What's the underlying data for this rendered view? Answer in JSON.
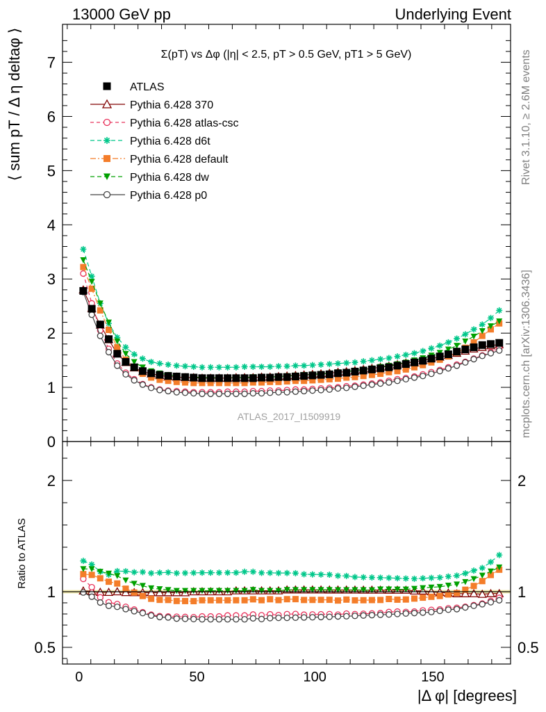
{
  "header": {
    "left": "13000 GeV pp",
    "right": "Underlying Event"
  },
  "side_text": {
    "rivet": "Rivet 3.1.10, ≥ 2.6M events",
    "mcplots": "mcplots.cern.ch [arXiv:1306.3436]"
  },
  "watermark": "ATLAS_2017_I1509919",
  "chart_data": {
    "type": "line",
    "title": "Σ(pT) vs Δφ (|η| < 2.5, pT > 0.5 GeV, pT1 > 5 GeV)",
    "xlabel": "|Δ φ| [degrees]",
    "ylabel": "⟨ sum pT / Δ η deltaφ ⟩",
    "ratio_ylabel": "Ratio to ATLAS",
    "xlim": [
      -7,
      183
    ],
    "ylim": [
      0,
      7.7
    ],
    "ratio_ylim": [
      0.35,
      2.35
    ],
    "xticks": [
      0,
      50,
      100,
      150
    ],
    "yticks": [
      0,
      1,
      2,
      3,
      4,
      5,
      6,
      7
    ],
    "ratio_yticks": [
      0.5,
      1,
      2
    ],
    "ratio_ytick_labels": [
      "0.5",
      "1",
      "2"
    ],
    "grid": false,
    "legend_position": "top-left",
    "x": [
      1.8,
      5.4,
      9,
      12.6,
      16.2,
      19.8,
      23.4,
      27,
      30.6,
      34.2,
      37.8,
      41.4,
      45,
      48.6,
      52.2,
      55.8,
      59.4,
      63,
      66.6,
      70.2,
      73.8,
      77.4,
      81,
      84.6,
      88.2,
      91.8,
      95.4,
      99,
      102.6,
      106.2,
      109.8,
      113.4,
      117,
      120.6,
      124.2,
      127.8,
      131.4,
      135,
      138.6,
      142.2,
      145.8,
      149.4,
      153,
      156.6,
      160.2,
      163.8,
      167.4,
      171,
      174.6,
      178.2
    ],
    "series": [
      {
        "name": "ATLAS",
        "color": "#000000",
        "marker": "filled-square",
        "values": [
          2.78,
          2.45,
          2.16,
          1.89,
          1.62,
          1.47,
          1.37,
          1.3,
          1.26,
          1.23,
          1.21,
          1.2,
          1.19,
          1.18,
          1.17,
          1.17,
          1.17,
          1.17,
          1.17,
          1.17,
          1.17,
          1.18,
          1.18,
          1.19,
          1.19,
          1.2,
          1.21,
          1.22,
          1.23,
          1.24,
          1.26,
          1.27,
          1.29,
          1.31,
          1.33,
          1.35,
          1.37,
          1.4,
          1.43,
          1.46,
          1.49,
          1.53,
          1.57,
          1.61,
          1.66,
          1.7,
          1.74,
          1.78,
          1.8,
          1.82
        ]
      },
      {
        "name": "Pythia 6.428 370",
        "color": "#800000",
        "marker": "open-triangle",
        "values": [
          2.8,
          2.46,
          2.15,
          1.88,
          1.62,
          1.46,
          1.36,
          1.29,
          1.25,
          1.22,
          1.2,
          1.19,
          1.18,
          1.18,
          1.17,
          1.17,
          1.17,
          1.17,
          1.18,
          1.18,
          1.18,
          1.19,
          1.19,
          1.2,
          1.21,
          1.22,
          1.23,
          1.24,
          1.25,
          1.26,
          1.28,
          1.29,
          1.31,
          1.33,
          1.35,
          1.37,
          1.39,
          1.42,
          1.45,
          1.47,
          1.5,
          1.53,
          1.56,
          1.59,
          1.63,
          1.67,
          1.71,
          1.74,
          1.77,
          1.79
        ]
      },
      {
        "name": "Pythia 6.428 atlas-csc",
        "color": "#e8305a",
        "marker": "open-circle",
        "values": [
          3.1,
          2.55,
          2.05,
          1.71,
          1.44,
          1.27,
          1.15,
          1.06,
          1.0,
          0.96,
          0.94,
          0.93,
          0.92,
          0.91,
          0.91,
          0.91,
          0.91,
          0.92,
          0.92,
          0.92,
          0.93,
          0.93,
          0.94,
          0.94,
          0.95,
          0.96,
          0.96,
          0.97,
          0.98,
          0.99,
          1.0,
          1.02,
          1.03,
          1.05,
          1.07,
          1.09,
          1.12,
          1.15,
          1.17,
          1.2,
          1.24,
          1.28,
          1.32,
          1.37,
          1.42,
          1.47,
          1.53,
          1.59,
          1.65,
          1.72
        ]
      },
      {
        "name": "Pythia 6.428 d6t",
        "color": "#00c78a",
        "marker": "asterisk",
        "values": [
          3.55,
          3.05,
          2.55,
          2.18,
          1.92,
          1.74,
          1.61,
          1.53,
          1.47,
          1.44,
          1.42,
          1.4,
          1.39,
          1.38,
          1.37,
          1.37,
          1.37,
          1.37,
          1.37,
          1.38,
          1.38,
          1.38,
          1.38,
          1.39,
          1.39,
          1.4,
          1.4,
          1.41,
          1.42,
          1.43,
          1.44,
          1.45,
          1.46,
          1.48,
          1.5,
          1.52,
          1.54,
          1.57,
          1.6,
          1.63,
          1.67,
          1.72,
          1.77,
          1.83,
          1.9,
          1.98,
          2.07,
          2.16,
          2.28,
          2.42
        ]
      },
      {
        "name": "Pythia 6.428 default",
        "color": "#f47d2a",
        "marker": "filled-square",
        "values": [
          3.22,
          2.82,
          2.42,
          2.06,
          1.74,
          1.51,
          1.36,
          1.25,
          1.18,
          1.14,
          1.12,
          1.1,
          1.09,
          1.08,
          1.08,
          1.08,
          1.08,
          1.08,
          1.08,
          1.08,
          1.09,
          1.09,
          1.1,
          1.1,
          1.11,
          1.12,
          1.12,
          1.13,
          1.14,
          1.15,
          1.16,
          1.18,
          1.19,
          1.21,
          1.23,
          1.25,
          1.28,
          1.3,
          1.33,
          1.37,
          1.41,
          1.46,
          1.51,
          1.57,
          1.64,
          1.73,
          1.83,
          1.95,
          2.07,
          2.18
        ]
      },
      {
        "name": "Pythia 6.428 dw",
        "color": "#00a000",
        "marker": "down-triangle",
        "values": [
          3.35,
          2.95,
          2.55,
          2.2,
          1.85,
          1.62,
          1.47,
          1.37,
          1.3,
          1.26,
          1.23,
          1.21,
          1.2,
          1.19,
          1.18,
          1.18,
          1.18,
          1.18,
          1.18,
          1.18,
          1.19,
          1.19,
          1.19,
          1.2,
          1.21,
          1.22,
          1.23,
          1.24,
          1.25,
          1.26,
          1.28,
          1.29,
          1.31,
          1.33,
          1.35,
          1.38,
          1.4,
          1.43,
          1.46,
          1.5,
          1.54,
          1.59,
          1.64,
          1.7,
          1.77,
          1.85,
          1.94,
          2.04,
          2.13,
          2.22
        ]
      },
      {
        "name": "Pythia 6.428 p0",
        "color": "#404040",
        "marker": "open-circle",
        "values": [
          2.76,
          2.34,
          1.95,
          1.65,
          1.4,
          1.24,
          1.13,
          1.05,
          0.99,
          0.95,
          0.93,
          0.91,
          0.9,
          0.89,
          0.88,
          0.88,
          0.88,
          0.88,
          0.88,
          0.88,
          0.89,
          0.89,
          0.9,
          0.91,
          0.91,
          0.92,
          0.93,
          0.94,
          0.95,
          0.96,
          0.98,
          0.99,
          1.01,
          1.03,
          1.05,
          1.07,
          1.09,
          1.12,
          1.15,
          1.18,
          1.21,
          1.25,
          1.3,
          1.35,
          1.4,
          1.46,
          1.52,
          1.58,
          1.63,
          1.68
        ]
      }
    ]
  }
}
